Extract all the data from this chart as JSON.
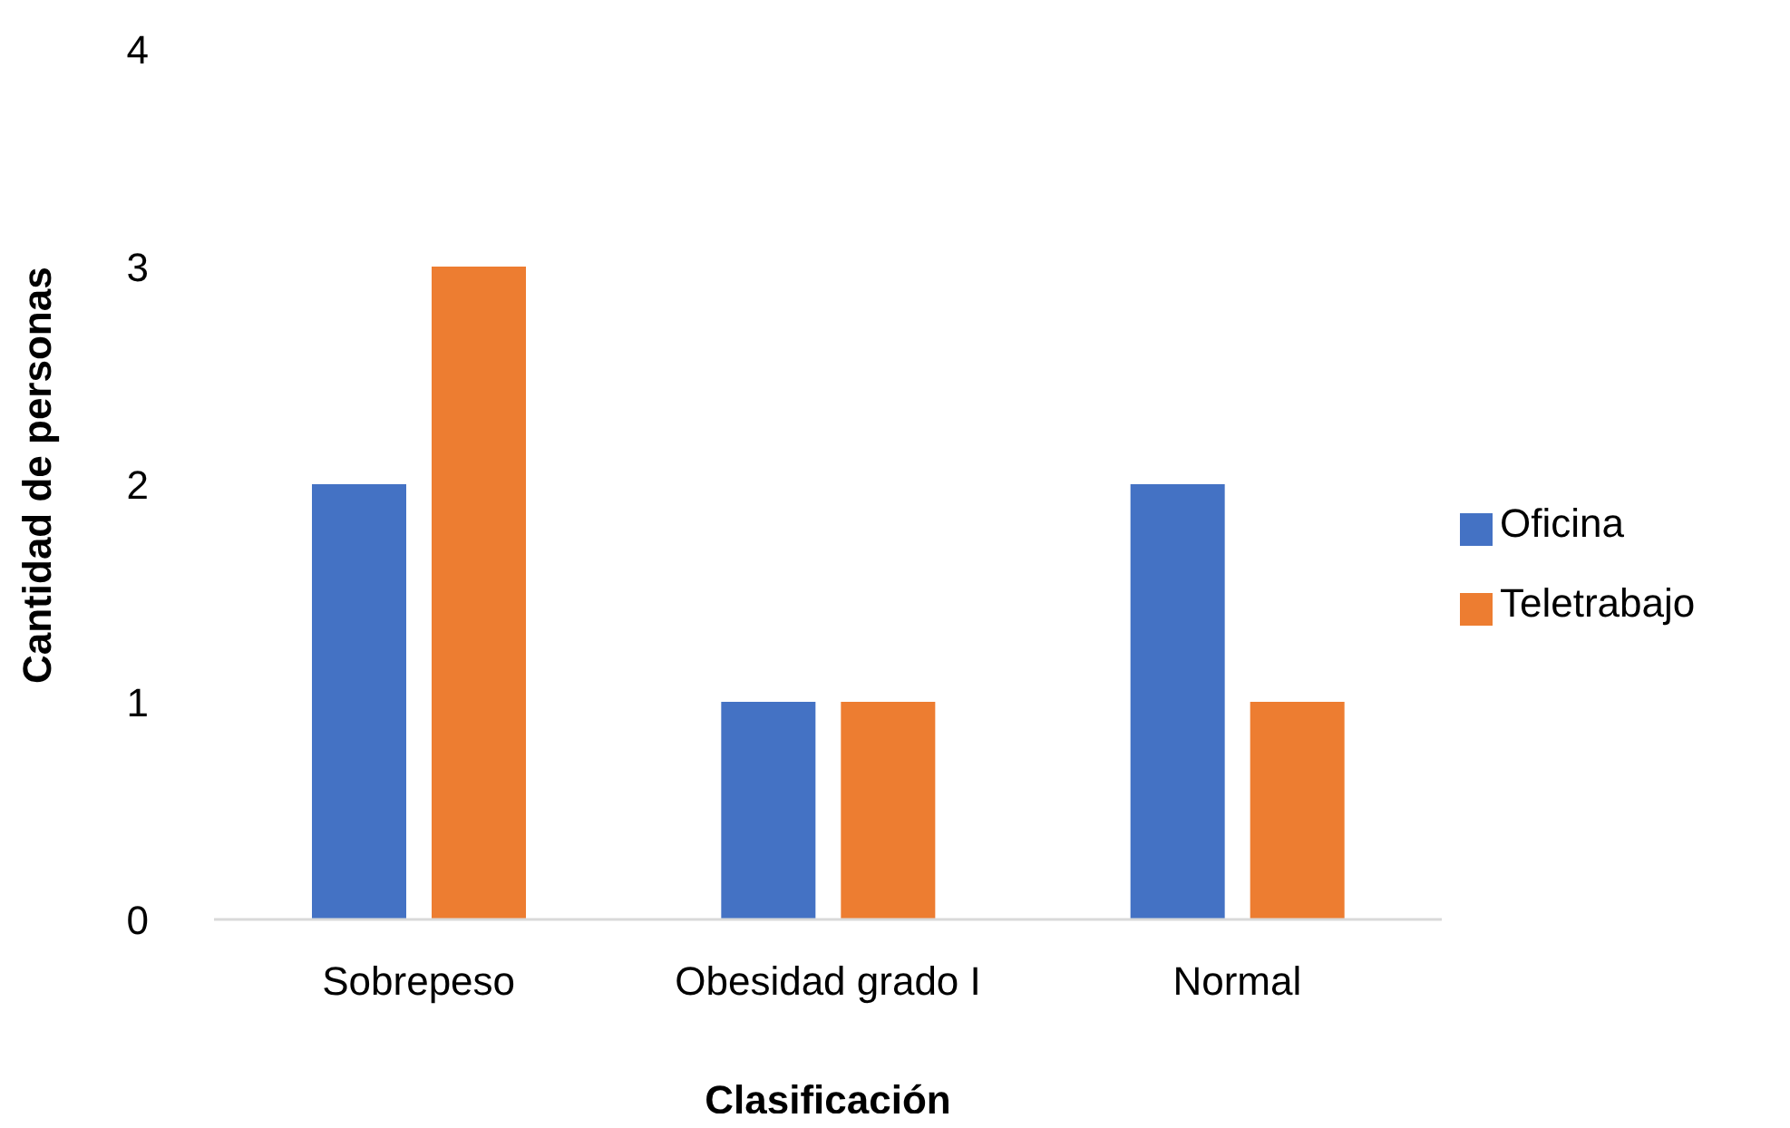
{
  "chart_data": {
    "type": "bar",
    "xlabel": "Clasificación",
    "ylabel": "Cantidad de personas",
    "categories": [
      "Sobrepeso",
      "Obesidad grado I",
      "Normal"
    ],
    "series": [
      {
        "name": "Oficina",
        "color": "#4472c4",
        "values": [
          2,
          1,
          2
        ]
      },
      {
        "name": "Teletrabajo",
        "color": "#ed7d31",
        "values": [
          3,
          1,
          1
        ]
      }
    ],
    "ylim": [
      0,
      4
    ],
    "yticks": [
      0,
      1,
      2,
      3,
      4
    ],
    "grid": false,
    "legend": "right"
  }
}
